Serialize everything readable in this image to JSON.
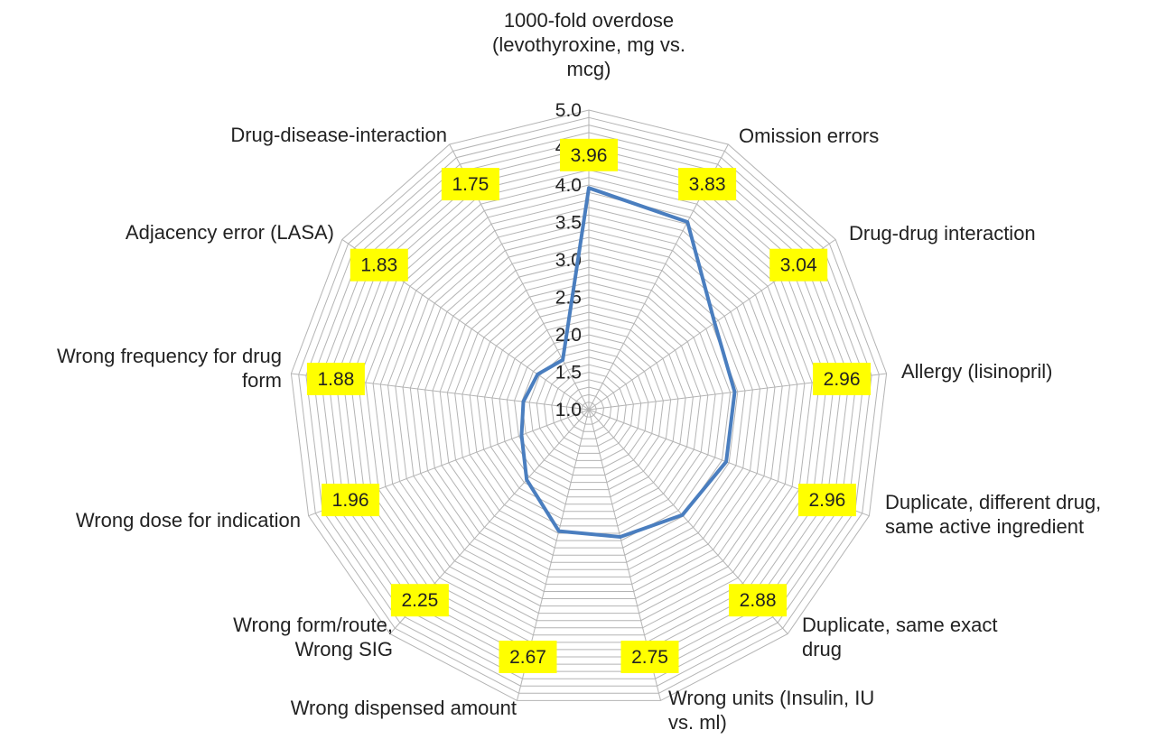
{
  "chart_data": {
    "type": "radar",
    "categories": [
      "1000-fold overdose (levothyroxine, mg vs. mcg)",
      "Omission errors",
      "Drug-drug interaction",
      "Allergy (lisinopril)",
      "Duplicate, different drug, same active ingredient",
      "Duplicate, same exact drug",
      "Wrong units (Insulin, IU vs. ml)",
      "Wrong dispensed amount",
      "Wrong form/route, Wrong SIG",
      "Wrong dose for indication",
      "Wrong frequency for drug form",
      "Adjacency error (LASA)",
      "Drug-disease-interaction"
    ],
    "category_label_lines": [
      [
        "1000-fold overdose",
        "(levothyroxine, mg vs.",
        "mcg)"
      ],
      [
        "Omission errors"
      ],
      [
        "Drug-drug interaction"
      ],
      [
        "Allergy (lisinopril)"
      ],
      [
        "Duplicate, different drug,",
        "same active ingredient"
      ],
      [
        "Duplicate, same exact",
        "drug"
      ],
      [
        "Wrong units (Insulin, IU",
        "vs. ml)"
      ],
      [
        "Wrong dispensed amount"
      ],
      [
        "Wrong form/route,",
        "Wrong SIG"
      ],
      [
        "Wrong dose for indication"
      ],
      [
        "Wrong frequency for drug",
        "form"
      ],
      [
        "Adjacency error (LASA)"
      ],
      [
        "Drug-disease-interaction"
      ]
    ],
    "values": [
      3.96,
      3.83,
      3.04,
      2.96,
      2.96,
      2.88,
      2.75,
      2.67,
      2.25,
      1.96,
      1.88,
      1.83,
      1.75
    ],
    "value_labels": [
      "3.96",
      "3.83",
      "3.04",
      "2.96",
      "2.96",
      "2.88",
      "2.75",
      "2.67",
      "2.25",
      "1.96",
      "1.88",
      "1.83",
      "1.75"
    ],
    "rlim": [
      1.0,
      5.0
    ],
    "major_ticks": [
      "1.0",
      "1.5",
      "2.0",
      "2.5",
      "3.0",
      "3.5",
      "4.0",
      "4.5",
      "5.0"
    ],
    "minor_step": 0.1,
    "grid": true,
    "legend": "none",
    "series_color": "#4a7ebf",
    "data_label_color": "#ffff00"
  }
}
